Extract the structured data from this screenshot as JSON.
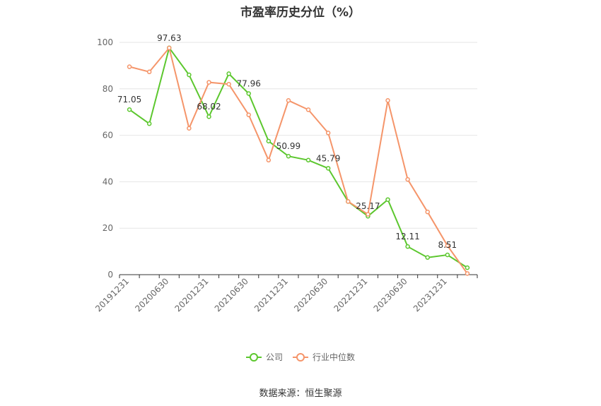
{
  "chart_data": {
    "type": "line",
    "title": "市盈率历史分位（%）",
    "x": [
      "20191231",
      "20200331",
      "20200630",
      "20200930",
      "20201231",
      "20210331",
      "20210630",
      "20210930",
      "20211231",
      "20220331",
      "20220630",
      "20220930",
      "20221231",
      "20230331",
      "20230630",
      "20230930",
      "20231231",
      "20240331"
    ],
    "x_tick_labels": [
      "20191231",
      "20200630",
      "20201231",
      "20210630",
      "20211231",
      "20220630",
      "20221231",
      "20230630",
      "20231231"
    ],
    "ylim": [
      0,
      100
    ],
    "y_ticks": [
      0,
      20,
      40,
      60,
      80,
      100
    ],
    "grid": true,
    "legend_position": "bottom",
    "series": [
      {
        "name": "公司",
        "color": "#5cc72e",
        "values": [
          71.05,
          65.0,
          97.63,
          86.0,
          68.02,
          86.5,
          77.96,
          57.5,
          50.99,
          49.3,
          45.79,
          31.5,
          25.17,
          32.3,
          12.11,
          7.4,
          8.51,
          3.0
        ],
        "labels": {
          "0": "71.05",
          "2": "97.63",
          "4": "68.02",
          "6": "77.96",
          "8": "50.99",
          "10": "45.79",
          "12": "25.17",
          "14": "12.11",
          "16": "8.51"
        }
      },
      {
        "name": "行业中位数",
        "color": "#f5956a",
        "values": [
          89.5,
          87.3,
          97.6,
          63.0,
          82.8,
          82.0,
          68.8,
          49.3,
          75.0,
          71.0,
          61.0,
          31.5,
          26.0,
          75.0,
          41.0,
          27.0,
          12.5,
          0.5
        ]
      }
    ]
  },
  "source_text": "数据来源：恒生聚源"
}
